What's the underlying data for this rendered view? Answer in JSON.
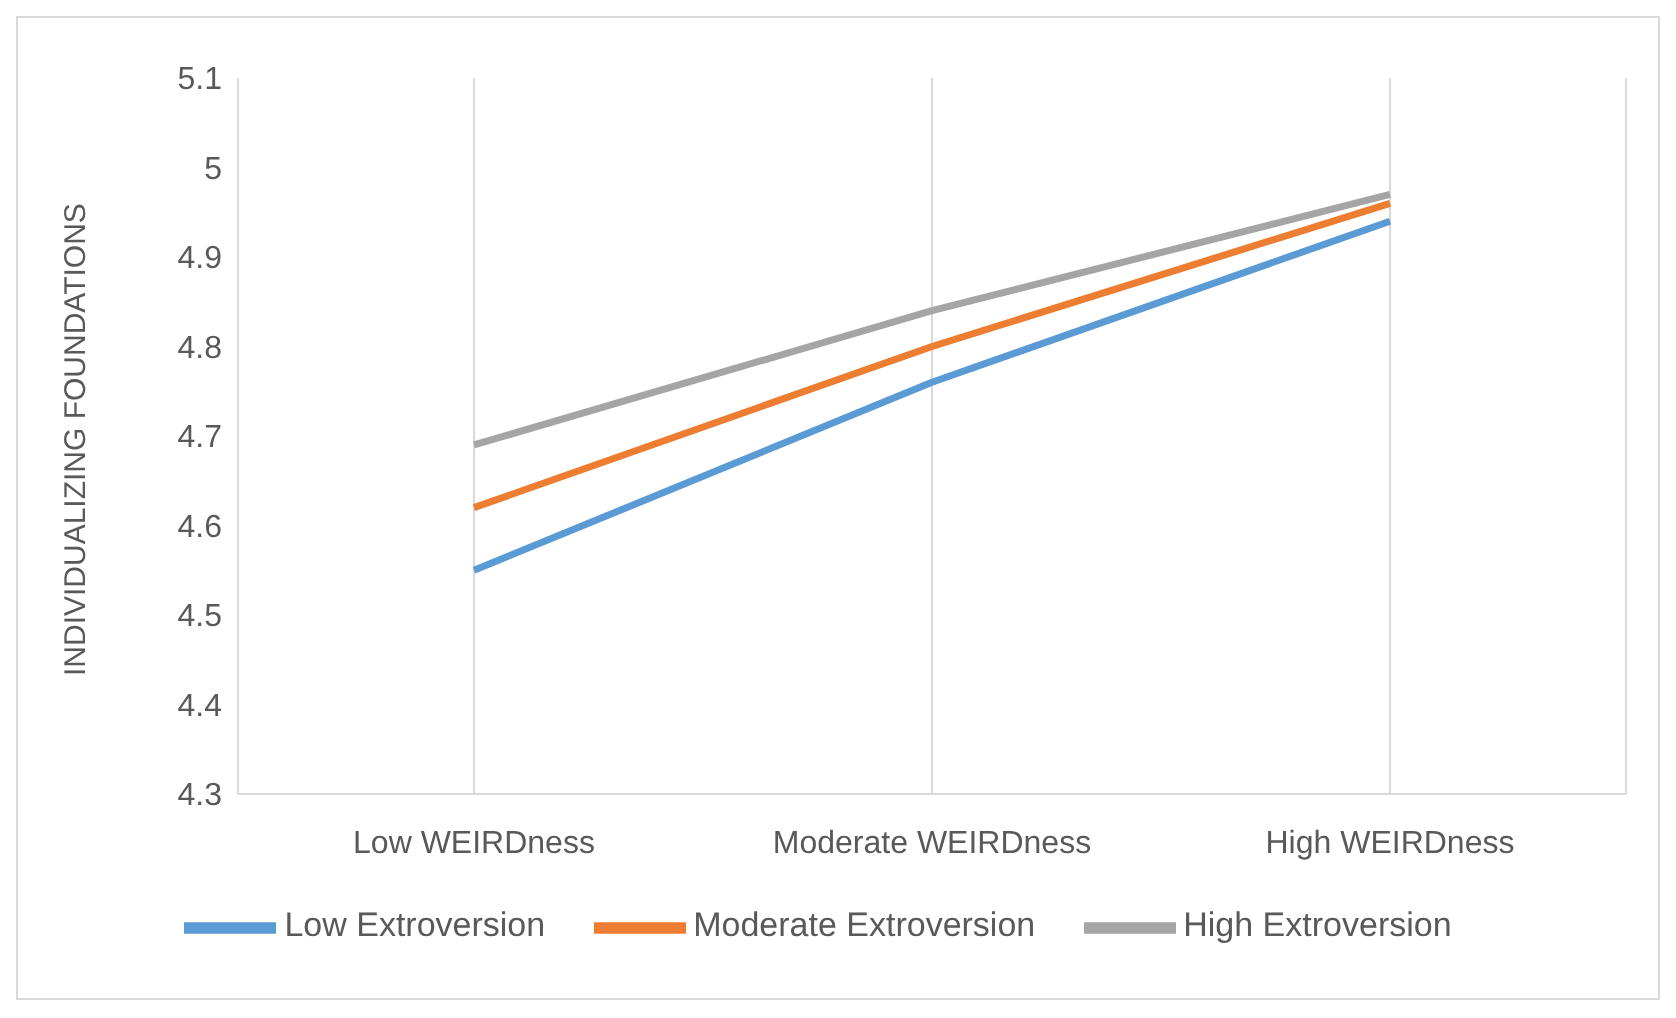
{
  "chart_data": {
    "type": "line",
    "ylabel": "INDIVIDUALIZING FOUNDATIONS",
    "categories": [
      "Low WEIRDness",
      "Moderate WEIRDness",
      "High WEIRDness"
    ],
    "series": [
      {
        "name": "Low Extroversion",
        "color": "#5b9bd5",
        "values": [
          4.55,
          4.76,
          4.94
        ]
      },
      {
        "name": "Moderate Extroversion",
        "color": "#ed7d31",
        "values": [
          4.62,
          4.8,
          4.96
        ]
      },
      {
        "name": "High Extroversion",
        "color": "#a5a5a5",
        "values": [
          4.69,
          4.84,
          4.97
        ]
      }
    ],
    "ylim": [
      4.3,
      5.1
    ],
    "yticks": [
      4.3,
      4.4,
      4.5,
      4.6,
      4.7,
      4.8,
      4.9,
      5,
      5.1
    ],
    "grid": "x",
    "legend": "bottom",
    "marker": "none",
    "line_style": "solid"
  }
}
